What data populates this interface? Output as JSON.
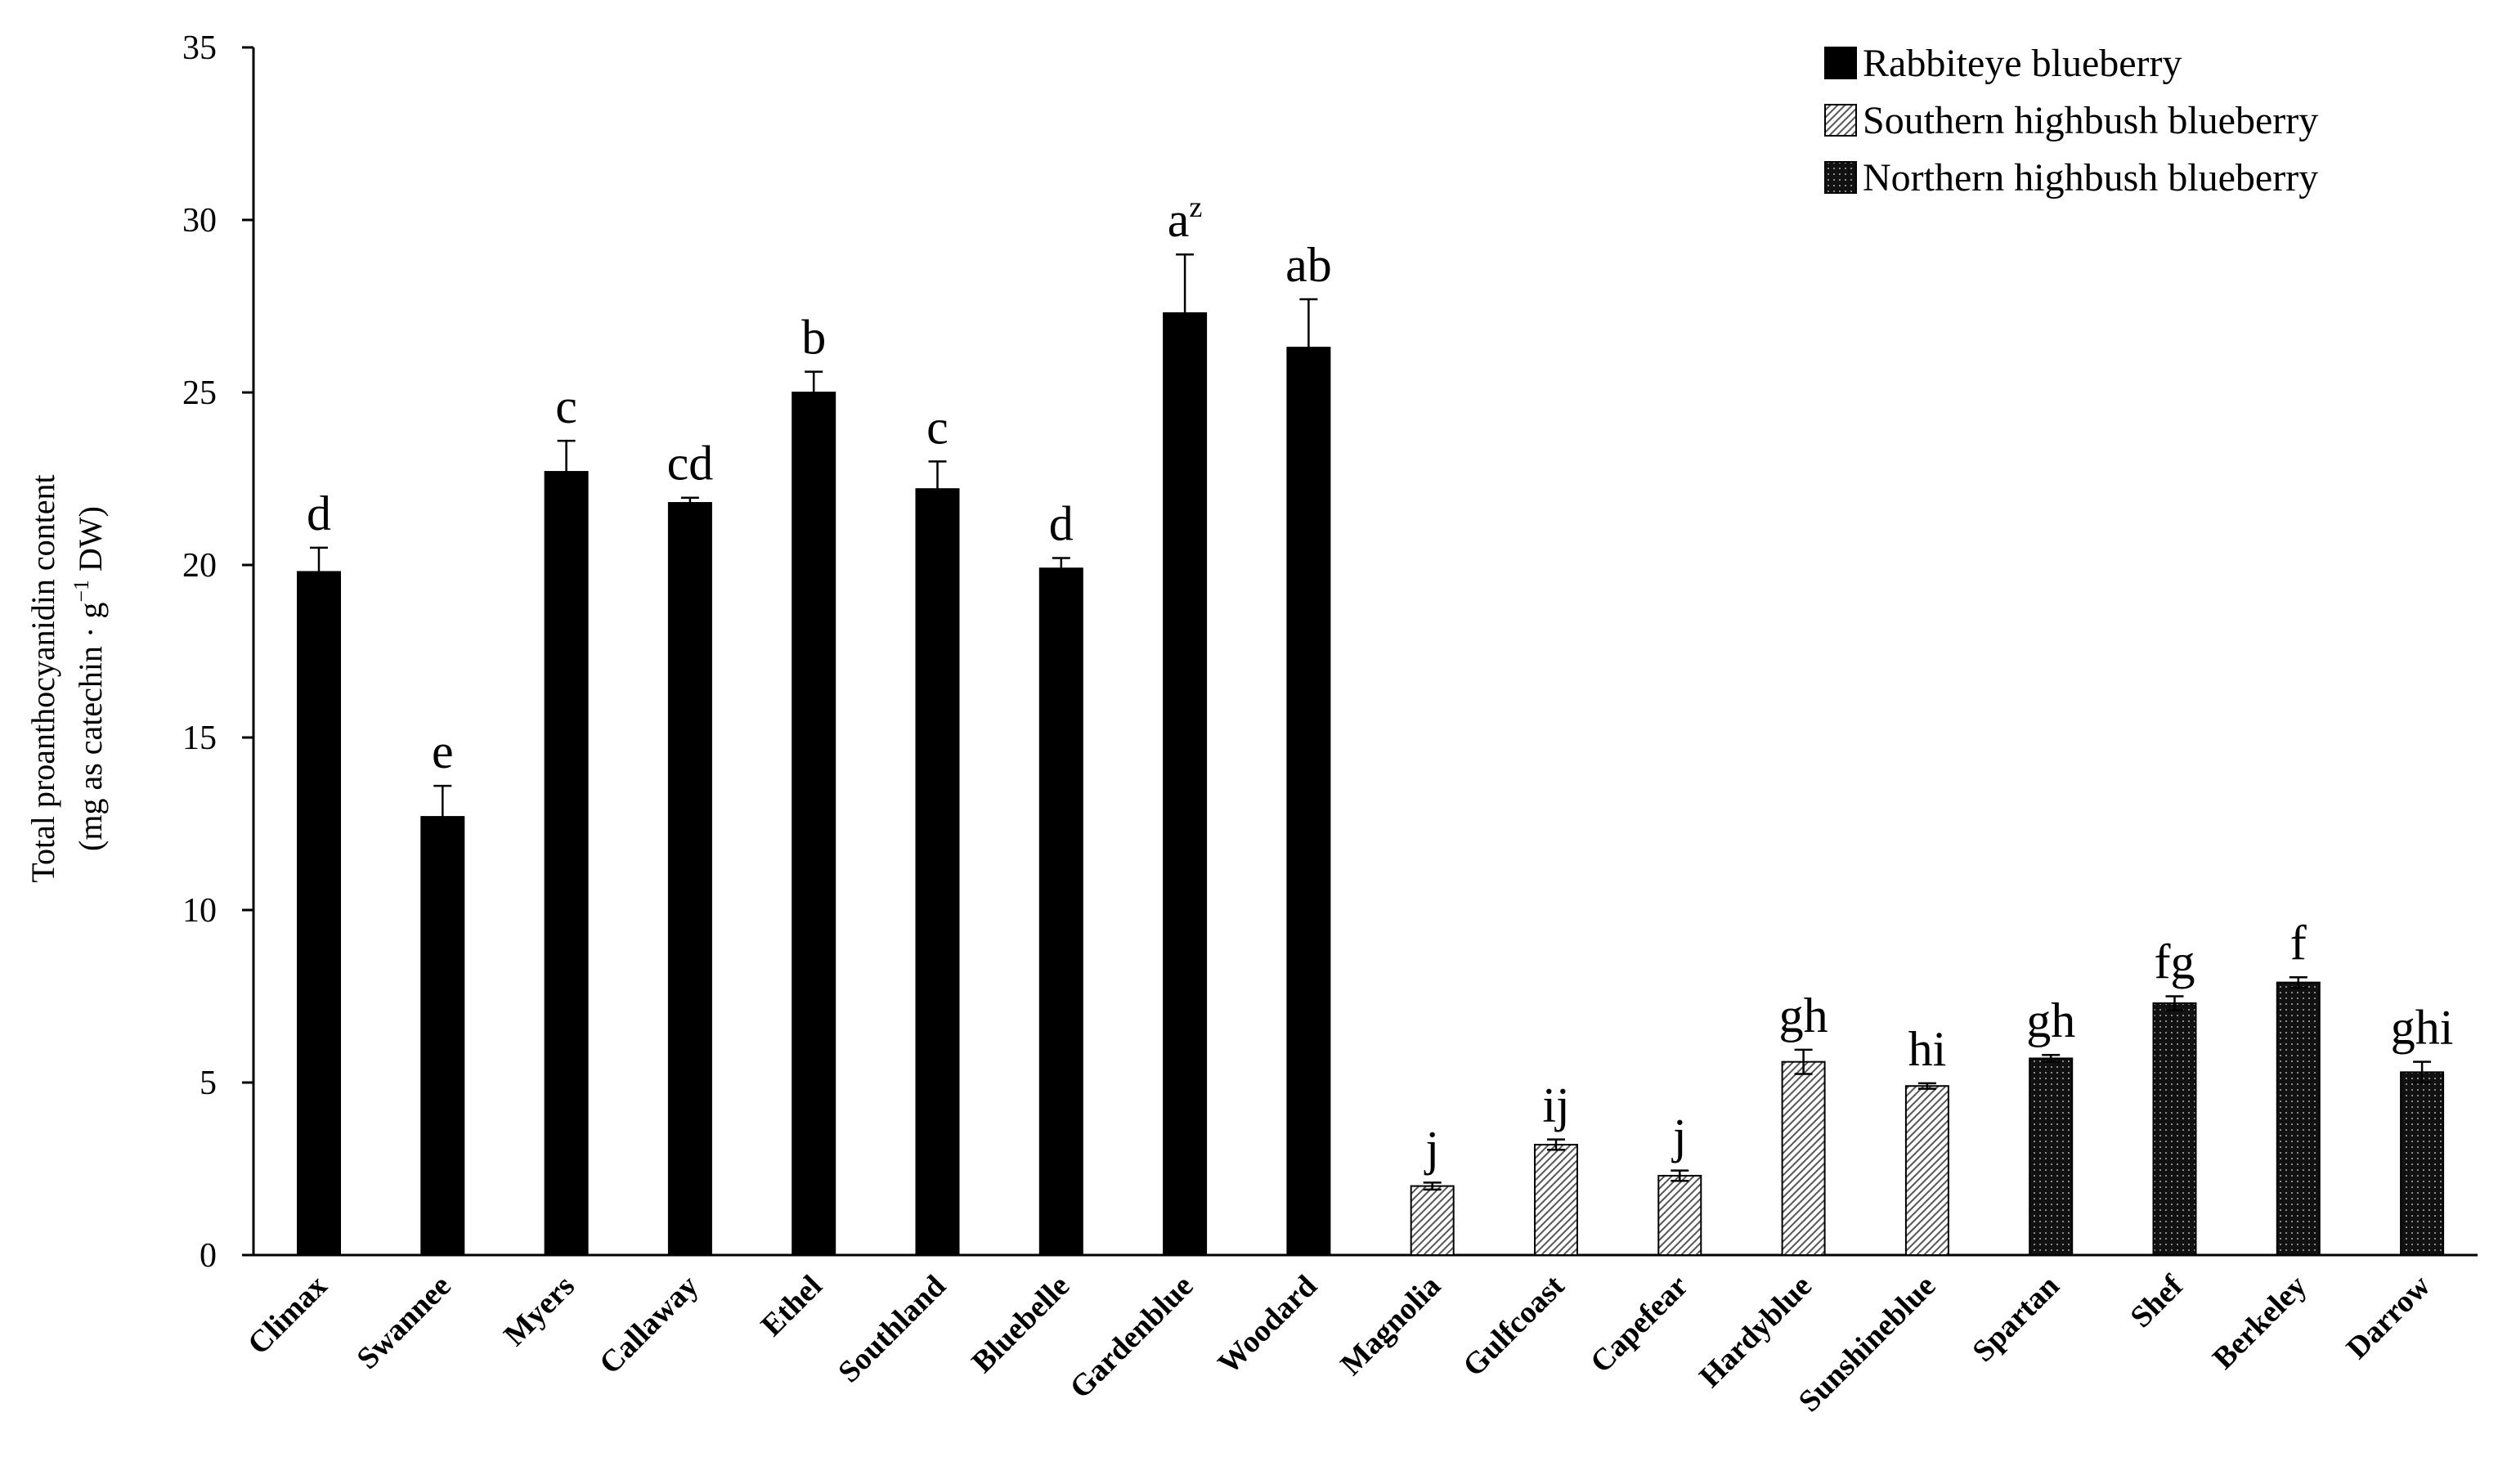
{
  "chart_data": {
    "type": "bar",
    "ylabel_line1": "Total proanthocyanidin content",
    "ylabel_line2_pre": "(mg as catechin · g",
    "ylabel_line2_sup": "−1",
    "ylabel_line2_post": " DW)",
    "ylim": [
      0,
      35
    ],
    "yticks": [
      "0",
      "5",
      "10",
      "15",
      "20",
      "25",
      "30",
      "35"
    ],
    "grid": false,
    "legend_position": "top-right",
    "legend": [
      {
        "key": "rabbiteye",
        "label": "Rabbiteye blueberry"
      },
      {
        "key": "southern",
        "label": "Southern highbush blueberry"
      },
      {
        "key": "northern",
        "label": "Northern highbush blueberry"
      }
    ],
    "bars": [
      {
        "category": "Climax",
        "value": 19.8,
        "error": 0.7,
        "letter": "d",
        "sup": "",
        "group": "rabbiteye"
      },
      {
        "category": "Swannee",
        "value": 12.7,
        "error": 0.9,
        "letter": "e",
        "sup": "",
        "group": "rabbiteye"
      },
      {
        "category": "Myers",
        "value": 22.7,
        "error": 0.9,
        "letter": "c",
        "sup": "",
        "group": "rabbiteye"
      },
      {
        "category": "Callaway",
        "value": 21.8,
        "error": 0.15,
        "letter": "cd",
        "sup": "",
        "group": "rabbiteye"
      },
      {
        "category": "Ethel",
        "value": 25.0,
        "error": 0.6,
        "letter": "b",
        "sup": "",
        "group": "rabbiteye"
      },
      {
        "category": "Southland",
        "value": 22.2,
        "error": 0.8,
        "letter": "c",
        "sup": "",
        "group": "rabbiteye"
      },
      {
        "category": "Bluebelle",
        "value": 19.9,
        "error": 0.3,
        "letter": "d",
        "sup": "",
        "group": "rabbiteye"
      },
      {
        "category": "Gardenblue",
        "value": 27.3,
        "error": 1.7,
        "letter": "a",
        "sup": "z",
        "group": "rabbiteye"
      },
      {
        "category": "Woodard",
        "value": 26.3,
        "error": 1.4,
        "letter": "ab",
        "sup": "",
        "group": "rabbiteye"
      },
      {
        "category": "Magnolia",
        "value": 2.0,
        "error": 0.1,
        "letter": "j",
        "sup": "",
        "group": "southern"
      },
      {
        "category": "Gulfcoast",
        "value": 3.2,
        "error": 0.15,
        "letter": "ij",
        "sup": "",
        "group": "southern"
      },
      {
        "category": "Capefear",
        "value": 2.3,
        "error": 0.15,
        "letter": "j",
        "sup": "",
        "group": "southern"
      },
      {
        "category": "Hardyblue",
        "value": 5.6,
        "error": 0.35,
        "letter": "gh",
        "sup": "",
        "group": "southern"
      },
      {
        "category": "Sunshineblue",
        "value": 4.9,
        "error": 0.08,
        "letter": "hi",
        "sup": "",
        "group": "southern"
      },
      {
        "category": "Spartan",
        "value": 5.7,
        "error": 0.1,
        "letter": "gh",
        "sup": "",
        "group": "northern"
      },
      {
        "category": "Shef",
        "value": 7.3,
        "error": 0.2,
        "letter": "fg",
        "sup": "",
        "group": "northern"
      },
      {
        "category": "Berkeley",
        "value": 7.9,
        "error": 0.15,
        "letter": "f",
        "sup": "",
        "group": "northern"
      },
      {
        "category": "Darrow",
        "value": 5.3,
        "error": 0.3,
        "letter": "ghi",
        "sup": "",
        "group": "northern"
      }
    ]
  }
}
